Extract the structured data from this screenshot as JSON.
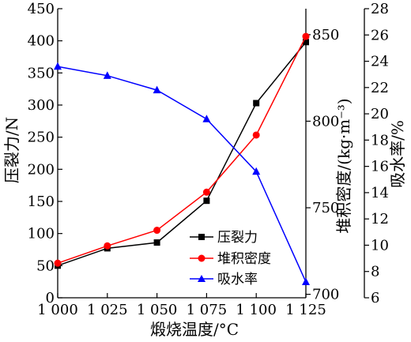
{
  "chart_data": {
    "type": "line",
    "xlabel": "煅烧温度/°C",
    "x": [
      1000,
      1025,
      1050,
      1075,
      1100,
      1125
    ],
    "x_tick_labels": [
      "1 000",
      "1 025",
      "1 050",
      "1 075",
      "1 100",
      "1 125"
    ],
    "xlim": [
      1000,
      1125
    ],
    "axes": {
      "left": {
        "label": "压裂力/N",
        "ylim": [
          0,
          450
        ],
        "ticks": [
          0,
          50,
          100,
          150,
          200,
          250,
          300,
          350,
          400,
          450
        ],
        "tick_labels": [
          "0",
          "50",
          "100",
          "150",
          "200",
          "250",
          "300",
          "350",
          "400",
          "450"
        ]
      },
      "right_inner": {
        "label": "堆积密度/(kg·m⁻³)",
        "ylim": [
          698,
          865
        ],
        "ticks": [
          700,
          750,
          800,
          850
        ],
        "tick_labels": [
          "700",
          "750",
          "800",
          "850"
        ]
      },
      "right_outer": {
        "label": "吸水率/%",
        "ylim": [
          6,
          28
        ],
        "ticks": [
          6,
          8,
          10,
          12,
          14,
          16,
          18,
          20,
          22,
          24,
          26,
          28
        ],
        "tick_labels": [
          "6",
          "8",
          "10",
          "12",
          "14",
          "16",
          "18",
          "20",
          "22",
          "24",
          "26",
          "28"
        ]
      }
    },
    "series": [
      {
        "name": "压裂力",
        "axis": "left",
        "color": "#000000",
        "marker": "square",
        "values": [
          50,
          77,
          86,
          151,
          303,
          398
        ]
      },
      {
        "name": "堆积密度",
        "axis": "right_inner",
        "color": "#ff0000",
        "marker": "circle",
        "values": [
          718,
          728,
          737,
          759,
          792,
          849
        ]
      },
      {
        "name": "吸水率",
        "axis": "right_outer",
        "color": "#0000ff",
        "marker": "triangle",
        "values": [
          23.6,
          22.9,
          21.8,
          19.6,
          15.6,
          7.2
        ]
      }
    ],
    "legend": {
      "position": "bottom-right-inside"
    },
    "grid": false
  }
}
